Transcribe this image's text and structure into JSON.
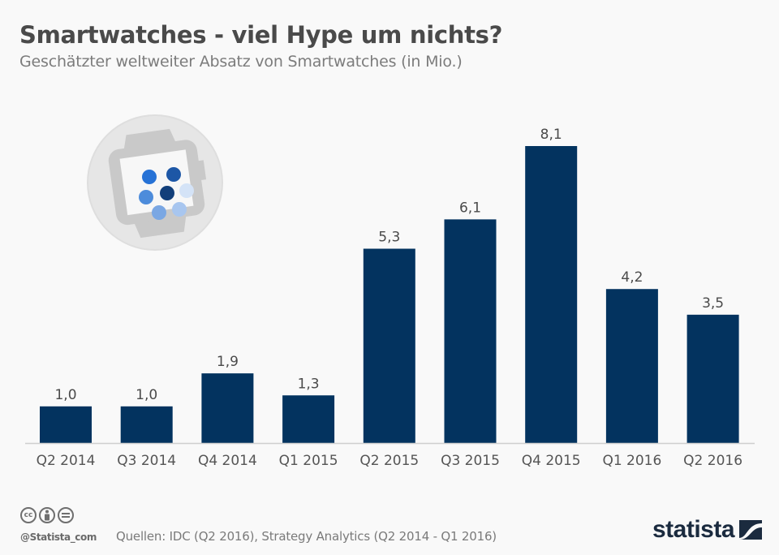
{
  "header": {
    "title": "Smartwatches - viel Hype um nichts?",
    "subtitle": "Geschätzter weltweiter Absatz von Smartwatches (in Mio.)"
  },
  "chart_data": {
    "type": "bar",
    "title": "Smartwatches - viel Hype um nichts?",
    "subtitle": "Geschätzter weltweiter Absatz von Smartwatches (in Mio.)",
    "xlabel": "",
    "ylabel": "",
    "categories": [
      "Q2 2014",
      "Q3 2014",
      "Q4 2014",
      "Q1 2015",
      "Q2 2015",
      "Q3 2015",
      "Q4 2015",
      "Q1 2016",
      "Q2 2016"
    ],
    "values": [
      1.0,
      1.0,
      1.9,
      1.3,
      5.3,
      6.1,
      8.1,
      4.2,
      3.5
    ],
    "value_labels": [
      "1,0",
      "1,0",
      "1,9",
      "1,3",
      "5,3",
      "6,1",
      "8,1",
      "4,2",
      "3,5"
    ],
    "ylim": [
      0,
      8.1
    ],
    "grid": false,
    "legend": "none",
    "bar_color": "#03335f"
  },
  "illustration": {
    "icon": "smartwatch-icon",
    "dot_colors": [
      "#2672d6",
      "#1d57a6",
      "#4d8cdb",
      "#123f7a",
      "#d4e3f7",
      "#7aa7e3",
      "#a8c6ef"
    ]
  },
  "footer": {
    "license_icons": [
      "cc-icon",
      "by-icon",
      "nd-icon"
    ],
    "cc_text": "cc",
    "handle": "@Statista_com",
    "source": "Quellen: IDC (Q2 2016), Strategy Analytics (Q2 2014 - Q1 2016)",
    "brand": "statista",
    "brand_color": "#1b2b3f"
  }
}
